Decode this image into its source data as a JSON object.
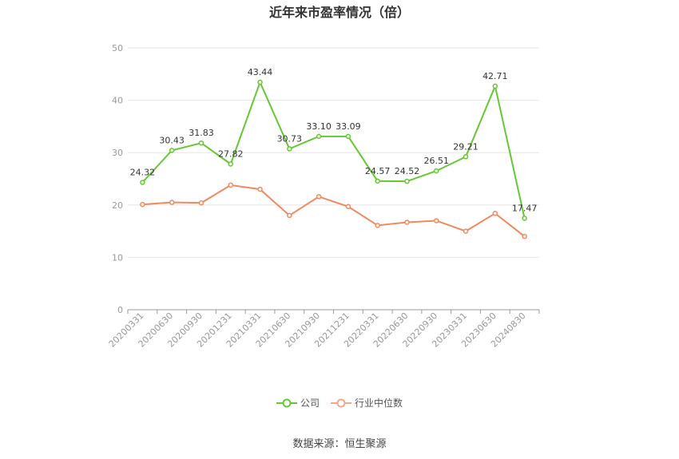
{
  "title": "近年来市盈率情况（倍）",
  "source": "数据来源：恒生聚源",
  "colors": {
    "company": "#66c734",
    "industry": "#f0895e",
    "grid": "#e6e6e6",
    "axis": "#999999"
  },
  "chart_data": {
    "type": "line",
    "categories": [
      "20200331",
      "20200630",
      "20200930",
      "20201231",
      "20210331",
      "20210630",
      "20210930",
      "20211231",
      "20220331",
      "20220630",
      "20220930",
      "20230331",
      "20230630",
      "20240830"
    ],
    "ylim": [
      0,
      50
    ],
    "yticks": [
      0,
      10,
      20,
      30,
      40,
      50
    ],
    "grid": true,
    "legend_position": "bottom",
    "series": [
      {
        "name": "公司",
        "values": [
          24.32,
          30.43,
          31.83,
          27.82,
          43.44,
          30.73,
          33.1,
          33.09,
          24.57,
          24.52,
          26.51,
          29.21,
          42.71,
          17.47
        ],
        "labels": [
          "24.32",
          "30.43",
          "31.83",
          "27.82",
          "43.44",
          "30.73",
          "33.10",
          "33.09",
          "24.57",
          "24.52",
          "26.51",
          "29.21",
          "42.71",
          "17.47"
        ]
      },
      {
        "name": "行业中位数",
        "values": [
          20.1,
          20.5,
          20.4,
          23.8,
          23.0,
          18.0,
          21.6,
          19.7,
          16.1,
          16.7,
          17.0,
          15.0,
          18.4,
          14.0
        ]
      }
    ]
  }
}
